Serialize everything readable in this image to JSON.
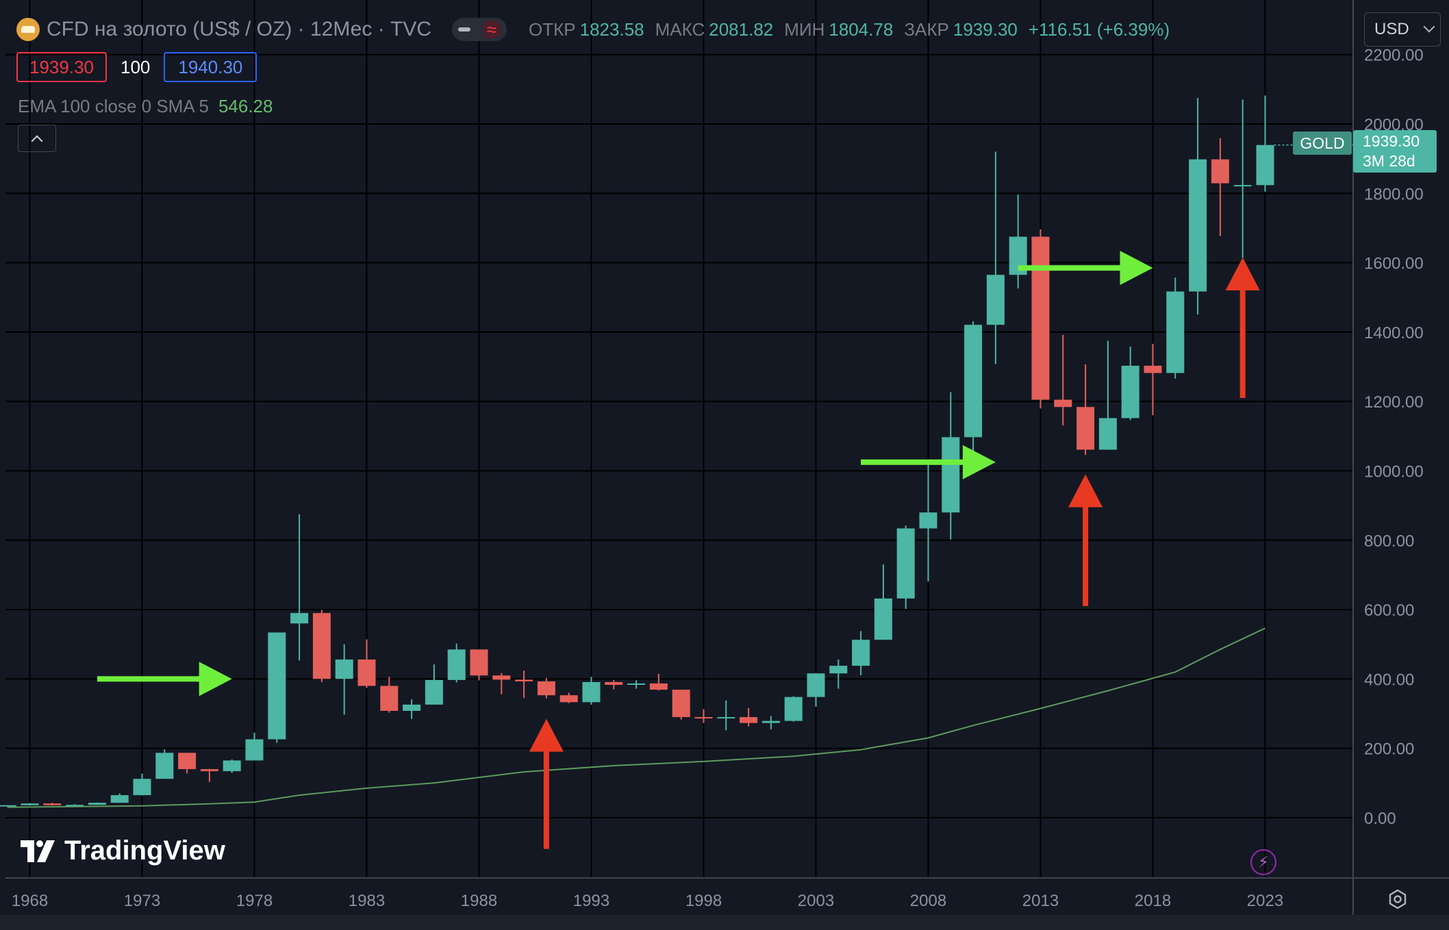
{
  "header": {
    "title": "CFD на золото (US$ / OZ) · 12Мес · TVC",
    "open_label": "ОТКР",
    "open": "1823.58",
    "high_label": "МАКС",
    "high": "2081.82",
    "low_label": "МИН",
    "low": "1804.78",
    "close_label": "ЗАКР",
    "close": "1939.30",
    "change": "+116.51 (+6.39%)"
  },
  "currency": "USD",
  "trade": {
    "sell": "1939.30",
    "qty": "100",
    "buy": "1940.30"
  },
  "indicator": {
    "label": "EMA 100 close 0 SMA 5",
    "value": "546.28"
  },
  "price_tag": {
    "symbol": "GOLD",
    "price": "1939.30",
    "countdown": "3M 28d"
  },
  "brand": "TradingView",
  "colors": {
    "up": "#4db6a5",
    "down": "#e4605a",
    "ema": "#5e9a5e",
    "green_arrow": "#6fef3c",
    "red_arrow": "#e83a22",
    "background": "#141823"
  },
  "chart_data": {
    "type": "candlestick",
    "title": "CFD на золото (US$ / OZ) · 12Мес · TVC",
    "ylim": [
      0,
      2200
    ],
    "y_ticks": [
      "0.00",
      "200.00",
      "400.00",
      "600.00",
      "800.00",
      "1000.00",
      "1200.00",
      "1400.00",
      "1600.00",
      "1800.00",
      "2000.00",
      "2200.00"
    ],
    "x_ticks": [
      "1968",
      "1973",
      "1978",
      "1983",
      "1988",
      "1993",
      "1998",
      "2003",
      "2008",
      "2013",
      "2018",
      "2023"
    ],
    "x_tick_years": [
      1968,
      1973,
      1978,
      1983,
      1988,
      1993,
      1998,
      2003,
      2008,
      2013,
      2018,
      2023
    ],
    "candles": [
      {
        "x": 1967,
        "o": 35,
        "h": 36,
        "l": 35,
        "c": 36
      },
      {
        "x": 1968,
        "o": 36,
        "h": 42,
        "l": 35,
        "c": 41
      },
      {
        "x": 1969,
        "o": 41,
        "h": 43,
        "l": 35,
        "c": 36
      },
      {
        "x": 1970,
        "o": 36,
        "h": 39,
        "l": 34,
        "c": 37
      },
      {
        "x": 1971,
        "o": 37,
        "h": 44,
        "l": 37,
        "c": 43
      },
      {
        "x": 1972,
        "o": 43,
        "h": 70,
        "l": 43,
        "c": 65
      },
      {
        "x": 1973,
        "o": 65,
        "h": 127,
        "l": 64,
        "c": 112
      },
      {
        "x": 1974,
        "o": 112,
        "h": 197,
        "l": 112,
        "c": 187
      },
      {
        "x": 1975,
        "o": 187,
        "h": 186,
        "l": 128,
        "c": 140
      },
      {
        "x": 1976,
        "o": 140,
        "h": 141,
        "l": 103,
        "c": 134
      },
      {
        "x": 1977,
        "o": 134,
        "h": 168,
        "l": 129,
        "c": 165
      },
      {
        "x": 1978,
        "o": 165,
        "h": 245,
        "l": 165,
        "c": 226
      },
      {
        "x": 1979,
        "o": 226,
        "h": 534,
        "l": 216,
        "c": 534
      },
      {
        "x": 1980,
        "o": 560,
        "h": 875,
        "l": 453,
        "c": 590
      },
      {
        "x": 1981,
        "o": 590,
        "h": 599,
        "l": 391,
        "c": 400
      },
      {
        "x": 1982,
        "o": 400,
        "h": 500,
        "l": 297,
        "c": 456
      },
      {
        "x": 1983,
        "o": 456,
        "h": 514,
        "l": 374,
        "c": 380
      },
      {
        "x": 1984,
        "o": 380,
        "h": 406,
        "l": 303,
        "c": 308
      },
      {
        "x": 1985,
        "o": 308,
        "h": 341,
        "l": 285,
        "c": 326
      },
      {
        "x": 1986,
        "o": 326,
        "h": 442,
        "l": 326,
        "c": 397
      },
      {
        "x": 1987,
        "o": 397,
        "h": 502,
        "l": 390,
        "c": 485
      },
      {
        "x": 1988,
        "o": 485,
        "h": 484,
        "l": 396,
        "c": 410
      },
      {
        "x": 1989,
        "o": 410,
        "h": 417,
        "l": 356,
        "c": 398
      },
      {
        "x": 1990,
        "o": 398,
        "h": 424,
        "l": 345,
        "c": 393
      },
      {
        "x": 1991,
        "o": 393,
        "h": 403,
        "l": 344,
        "c": 353
      },
      {
        "x": 1992,
        "o": 353,
        "h": 360,
        "l": 330,
        "c": 333
      },
      {
        "x": 1993,
        "o": 333,
        "h": 406,
        "l": 326,
        "c": 391
      },
      {
        "x": 1994,
        "o": 391,
        "h": 397,
        "l": 370,
        "c": 383
      },
      {
        "x": 1995,
        "o": 383,
        "h": 396,
        "l": 372,
        "c": 387
      },
      {
        "x": 1996,
        "o": 387,
        "h": 415,
        "l": 367,
        "c": 369
      },
      {
        "x": 1997,
        "o": 369,
        "h": 367,
        "l": 283,
        "c": 290
      },
      {
        "x": 1998,
        "o": 290,
        "h": 313,
        "l": 273,
        "c": 288
      },
      {
        "x": 1999,
        "o": 288,
        "h": 338,
        "l": 252,
        "c": 290
      },
      {
        "x": 2000,
        "o": 290,
        "h": 316,
        "l": 263,
        "c": 273
      },
      {
        "x": 2001,
        "o": 273,
        "h": 293,
        "l": 255,
        "c": 279
      },
      {
        "x": 2002,
        "o": 279,
        "h": 350,
        "l": 277,
        "c": 348
      },
      {
        "x": 2003,
        "o": 348,
        "h": 417,
        "l": 320,
        "c": 416
      },
      {
        "x": 2004,
        "o": 416,
        "h": 456,
        "l": 372,
        "c": 438
      },
      {
        "x": 2005,
        "o": 438,
        "h": 538,
        "l": 411,
        "c": 513
      },
      {
        "x": 2006,
        "o": 513,
        "h": 730,
        "l": 513,
        "c": 632
      },
      {
        "x": 2007,
        "o": 632,
        "h": 842,
        "l": 602,
        "c": 834
      },
      {
        "x": 2008,
        "o": 834,
        "h": 1033,
        "l": 681,
        "c": 880
      },
      {
        "x": 2009,
        "o": 880,
        "h": 1227,
        "l": 802,
        "c": 1097
      },
      {
        "x": 2010,
        "o": 1097,
        "h": 1431,
        "l": 1044,
        "c": 1421
      },
      {
        "x": 2011,
        "o": 1421,
        "h": 1920,
        "l": 1308,
        "c": 1565
      },
      {
        "x": 2012,
        "o": 1565,
        "h": 1796,
        "l": 1526,
        "c": 1675
      },
      {
        "x": 2013,
        "o": 1675,
        "h": 1696,
        "l": 1180,
        "c": 1205
      },
      {
        "x": 2014,
        "o": 1205,
        "h": 1392,
        "l": 1131,
        "c": 1184
      },
      {
        "x": 2015,
        "o": 1184,
        "h": 1307,
        "l": 1046,
        "c": 1061
      },
      {
        "x": 2016,
        "o": 1061,
        "h": 1375,
        "l": 1061,
        "c": 1152
      },
      {
        "x": 2017,
        "o": 1152,
        "h": 1358,
        "l": 1146,
        "c": 1303
      },
      {
        "x": 2018,
        "o": 1303,
        "h": 1366,
        "l": 1160,
        "c": 1282
      },
      {
        "x": 2019,
        "o": 1282,
        "h": 1557,
        "l": 1266,
        "c": 1517
      },
      {
        "x": 2020,
        "o": 1517,
        "h": 2075,
        "l": 1451,
        "c": 1898
      },
      {
        "x": 2021,
        "o": 1898,
        "h": 1959,
        "l": 1677,
        "c": 1829
      },
      {
        "x": 2022,
        "o": 1824,
        "h": 2070,
        "l": 1614,
        "c": 1824
      },
      {
        "x": 2023,
        "o": 1823.58,
        "h": 2081.82,
        "l": 1804.78,
        "c": 1939.3
      }
    ],
    "ema": {
      "name": "EMA 100 close 0 SMA 5",
      "x": [
        1967,
        1970,
        1973,
        1976,
        1978,
        1980,
        1983,
        1986,
        1990,
        1994,
        1998,
        2002,
        2005,
        2008,
        2010,
        2013,
        2016,
        2019,
        2021,
        2023
      ],
      "y": [
        30,
        32,
        34,
        40,
        45,
        65,
        85,
        100,
        132,
        150,
        162,
        177,
        196,
        230,
        266,
        315,
        366,
        420,
        485,
        546.28
      ]
    },
    "annotations": [
      {
        "type": "arrow",
        "direction": "right",
        "color": "green",
        "x_from": 1971,
        "x_to": 1977,
        "y": 400
      },
      {
        "type": "arrow",
        "direction": "right",
        "color": "green",
        "x_from": 2005,
        "x_to": 2011,
        "y": 1025
      },
      {
        "type": "arrow",
        "direction": "right",
        "color": "green",
        "x_from": 2012,
        "x_to": 2018,
        "y": 1585
      },
      {
        "type": "arrow",
        "direction": "up",
        "color": "red",
        "x": 1991,
        "y_from": -90,
        "y_to": 285
      },
      {
        "type": "arrow",
        "direction": "up",
        "color": "red",
        "x": 2015,
        "y_from": 610,
        "y_to": 990
      },
      {
        "type": "arrow",
        "direction": "up",
        "color": "red",
        "x": 2022,
        "y_from": 1210,
        "y_to": 1615
      }
    ]
  }
}
